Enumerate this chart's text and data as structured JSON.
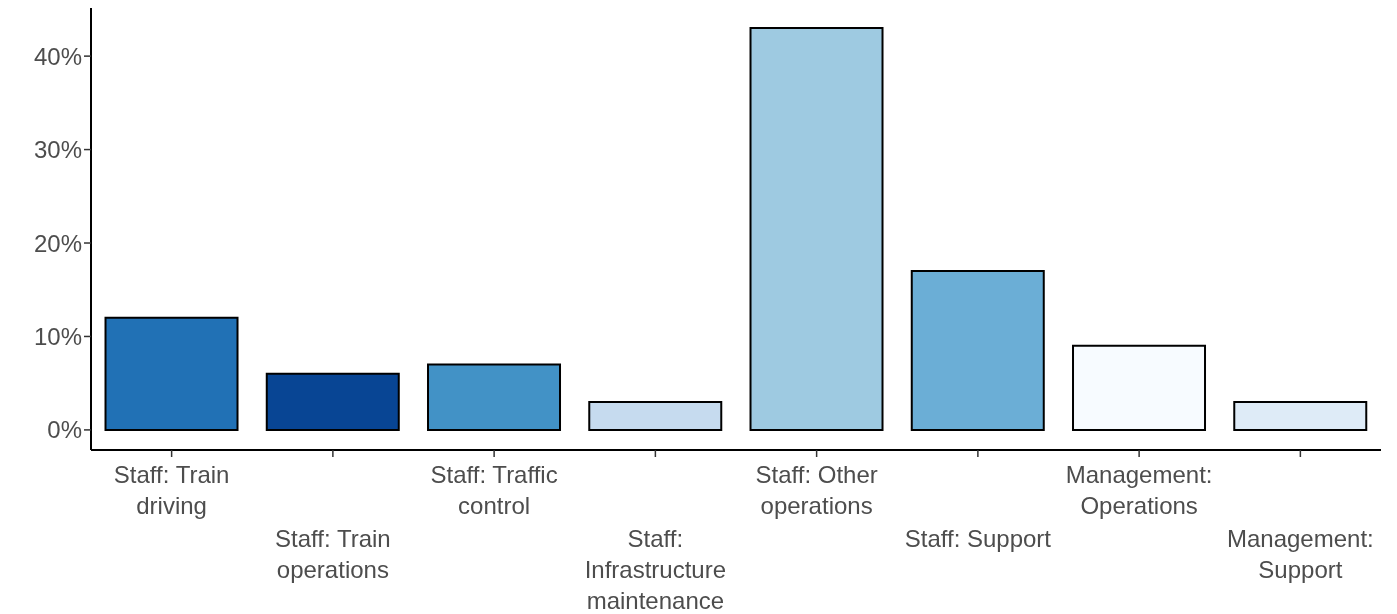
{
  "chart_data": {
    "type": "bar",
    "categories": [
      "Staff: Train\ndriving",
      "Staff: Train\noperations",
      "Staff: Traffic\ncontrol",
      "Staff:\nInfrastructure\nmaintenance",
      "Staff: Other\noperations",
      "Staff: Support",
      "Management:\nOperations",
      "Management:\nSupport"
    ],
    "values": [
      12,
      6,
      7,
      3,
      43,
      17,
      9,
      3
    ],
    "colors": [
      "#2171b5",
      "#084594",
      "#4292c6",
      "#c6dbef",
      "#9ecae1",
      "#6baed6",
      "#f7fbff",
      "#deebf7"
    ],
    "ylim": [
      -2.15,
      45.15
    ],
    "yticks": [
      {
        "value": 0,
        "label": "0%"
      },
      {
        "value": 10,
        "label": "10%"
      },
      {
        "value": 20,
        "label": "20%"
      },
      {
        "value": 30,
        "label": "30%"
      },
      {
        "value": 40,
        "label": "40%"
      }
    ],
    "grid": false
  }
}
